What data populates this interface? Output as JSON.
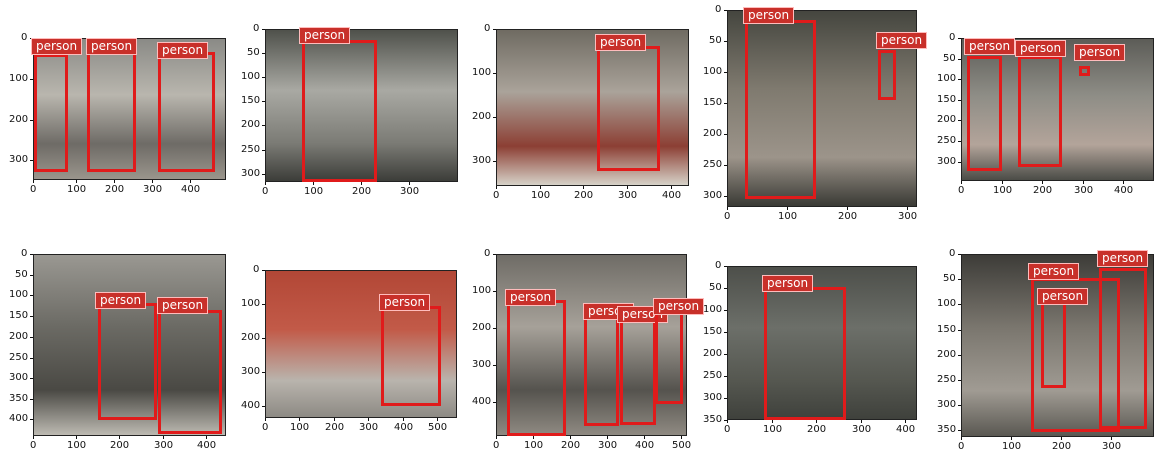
{
  "palette": {
    "box": "#e01b1b",
    "label_bg": "#c8302a",
    "label_text": "#ffffff"
  },
  "detection_label": "person",
  "panels": [
    {
      "xticks": [
        "0",
        "100",
        "200",
        "300",
        "400"
      ],
      "yticks": [
        "0",
        "100",
        "200",
        "300"
      ],
      "scene": [
        "#8a8a86",
        "#b9b6ae",
        "#6e6b66",
        "#9a958c"
      ],
      "detections": [
        {
          "label": "person"
        },
        {
          "label": "person"
        },
        {
          "label": "person"
        }
      ]
    },
    {
      "xticks": [
        "0",
        "100",
        "200",
        "300"
      ],
      "yticks": [
        "0",
        "50",
        "100",
        "150",
        "200",
        "250",
        "300"
      ],
      "scene": [
        "#4f514b",
        "#a9a9a3",
        "#7b7b75",
        "#3c3d39"
      ],
      "detections": [
        {
          "label": "person"
        }
      ]
    },
    {
      "xticks": [
        "0",
        "100",
        "200",
        "300",
        "400"
      ],
      "yticks": [
        "0",
        "100",
        "200",
        "300"
      ],
      "scene": [
        "#6f6b62",
        "#aaa39a",
        "#8c3f34",
        "#d6d2c8"
      ],
      "detections": [
        {
          "label": "person"
        }
      ]
    },
    {
      "xticks": [
        "0",
        "100",
        "200",
        "300"
      ],
      "yticks": [
        "0",
        "50",
        "100",
        "150",
        "200",
        "250",
        "300"
      ],
      "scene": [
        "#45463f",
        "#7f7a6f",
        "#9c948a",
        "#3a3a35"
      ],
      "detections": [
        {
          "label": "person"
        },
        {
          "label": "person"
        }
      ]
    },
    {
      "xticks": [
        "0",
        "100",
        "200",
        "300",
        "400"
      ],
      "yticks": [
        "0",
        "50",
        "100",
        "150",
        "200",
        "250",
        "300"
      ],
      "scene": [
        "#5c5c57",
        "#8e8d86",
        "#b3a49a",
        "#4b4c47"
      ],
      "detections": [
        {
          "label": "person"
        },
        {
          "label": "person"
        },
        {
          "label": "person"
        }
      ]
    },
    {
      "xticks": [
        "0",
        "100",
        "200",
        "300",
        "400"
      ],
      "yticks": [
        "0",
        "50",
        "100",
        "150",
        "200",
        "250",
        "300",
        "350",
        "400"
      ],
      "scene": [
        "#9a9892",
        "#6b6a64",
        "#4a4944",
        "#bdbab2"
      ],
      "detections": [
        {
          "label": "person"
        },
        {
          "label": "person"
        }
      ]
    },
    {
      "xticks": [
        "0",
        "100",
        "200",
        "300",
        "400",
        "500"
      ],
      "yticks": [
        "0",
        "100",
        "200",
        "300",
        "400"
      ],
      "scene": [
        "#b24736",
        "#c25a48",
        "#b9b4ad",
        "#8d8a84"
      ],
      "detections": [
        {
          "label": "person"
        }
      ]
    },
    {
      "xticks": [
        "0",
        "100",
        "200",
        "300",
        "400",
        "500"
      ],
      "yticks": [
        "0",
        "100",
        "200",
        "300",
        "400"
      ],
      "scene": [
        "#6f6c66",
        "#a6a199",
        "#55534e",
        "#8f8a82"
      ],
      "detections": [
        {
          "label": "person"
        },
        {
          "label": "person"
        },
        {
          "label": "person"
        },
        {
          "label": "person"
        }
      ]
    },
    {
      "xticks": [
        "0",
        "100",
        "200",
        "300",
        "400"
      ],
      "yticks": [
        "0",
        "50",
        "100",
        "150",
        "200",
        "250",
        "300",
        "350"
      ],
      "scene": [
        "#4d4f4a",
        "#6c6f69",
        "#555750",
        "#3f413c"
      ],
      "detections": [
        {
          "label": "person"
        }
      ]
    },
    {
      "xticks": [
        "0",
        "100",
        "200",
        "300"
      ],
      "yticks": [
        "0",
        "50",
        "100",
        "150",
        "200",
        "250",
        "300",
        "350"
      ],
      "scene": [
        "#3d3c38",
        "#7a766e",
        "#a09b93",
        "#5a5852"
      ],
      "detections": [
        {
          "label": "person"
        },
        {
          "label": "person"
        },
        {
          "label": "person"
        }
      ]
    }
  ]
}
